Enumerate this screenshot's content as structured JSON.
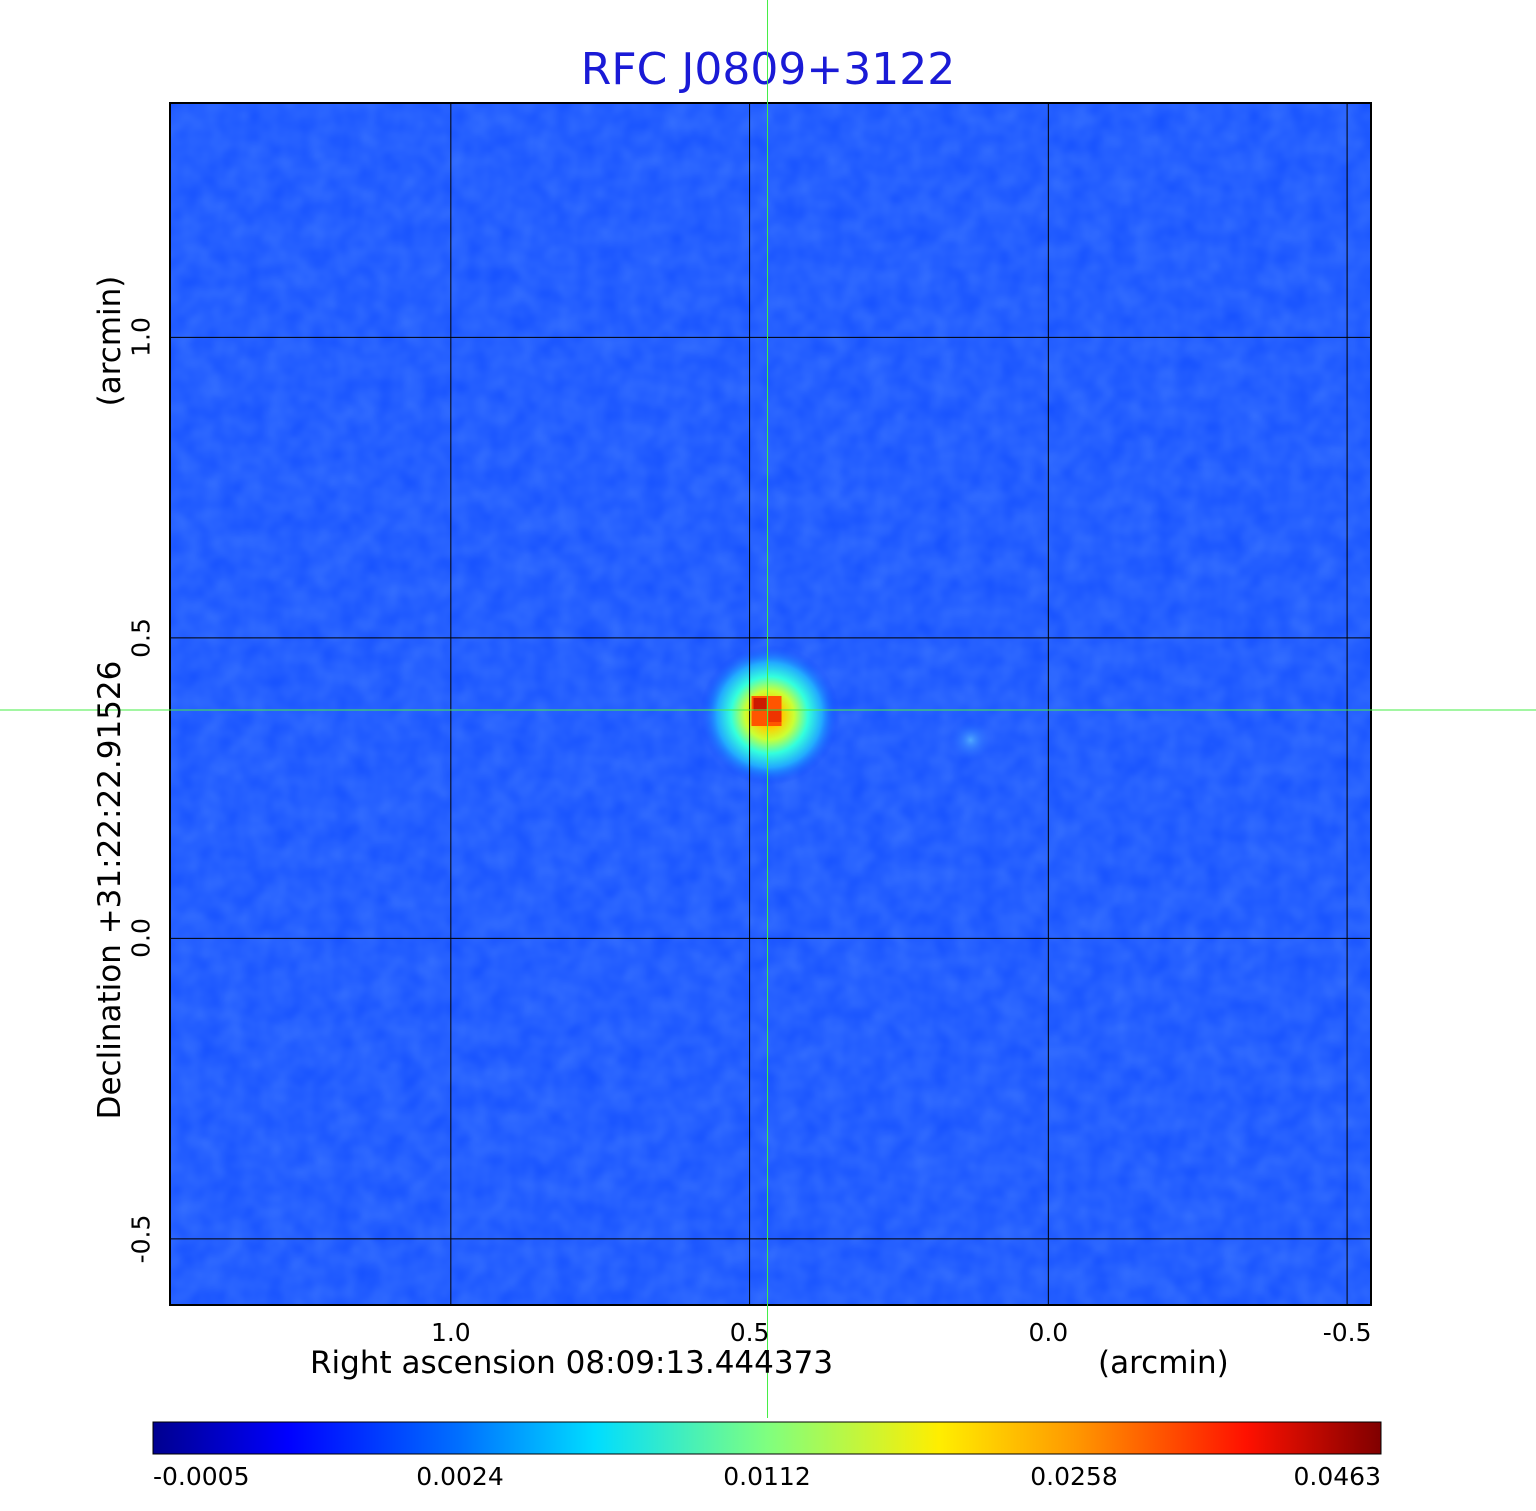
{
  "chart_data": {
    "type": "heatmap",
    "title": "RFC J0809+3122",
    "xlabel": "Right ascension  08:09:13.444373",
    "xunit": "(arcmin)",
    "ylabel": "Declination  +31:22:22.91526",
    "yunit": "(arcmin)",
    "x_ticks": [
      "1.0",
      "0.5",
      "0.0",
      "-0.5"
    ],
    "x_tick_values": [
      1.0,
      0.5,
      0.0,
      -0.5
    ],
    "y_ticks": [
      "1.0",
      "0.5",
      "0.0",
      "-0.5"
    ],
    "y_tick_values": [
      1.0,
      0.5,
      0.0,
      -0.5
    ],
    "xlim": [
      1.47,
      -0.54
    ],
    "ylim": [
      -0.61,
      1.39
    ],
    "grid": true,
    "crosshair": {
      "x": 0.47,
      "y": 0.38
    },
    "sources": [
      {
        "name": "peak",
        "x": 0.47,
        "y": 0.38,
        "value": 0.0463
      },
      {
        "name": "secondary",
        "x": 0.13,
        "y": 0.33,
        "value": 0.004
      }
    ],
    "colorbar": {
      "colormap": "jet",
      "ticks": [
        "-0.0005",
        "0.0024",
        "0.0112",
        "0.0258",
        "0.0463"
      ],
      "tick_values": [
        -0.0005,
        0.0024,
        0.0112,
        0.0258,
        0.0463
      ]
    }
  },
  "colors": {
    "title": "#1a1ad6",
    "crosshair": "#44ee44",
    "grid": "#000000"
  }
}
